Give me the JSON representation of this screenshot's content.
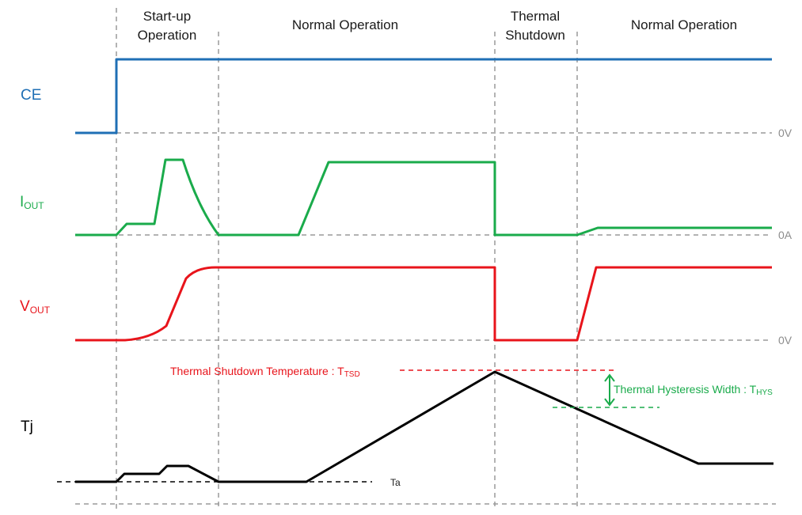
{
  "colors": {
    "ce": "#1f6fb5",
    "iout": "#1aab4b",
    "vout": "#e8141b",
    "tj": "#000000",
    "grid": "#9a9a9a"
  },
  "phases": {
    "startup_line1": "Start-up",
    "startup_line2": "Operation",
    "normal1": "Normal Operation",
    "thermal_line1": "Thermal",
    "thermal_line2": "Shutdown",
    "normal2": "Normal Operation"
  },
  "signals": {
    "ce": "CE",
    "iout_main": "I",
    "iout_sub": "OUT",
    "vout_main": "V",
    "vout_sub": "OUT",
    "tj": "Tj"
  },
  "references": {
    "ce_zero": "0V",
    "iout_zero": "0A",
    "vout_zero": "0V"
  },
  "annotations": {
    "tsd_text": "Thermal Shutdown Temperature : T",
    "tsd_sub": "TSD",
    "hys_text": "Thermal Hysteresis Width : T",
    "hys_sub": "HYS",
    "ambient": "Ta"
  }
}
